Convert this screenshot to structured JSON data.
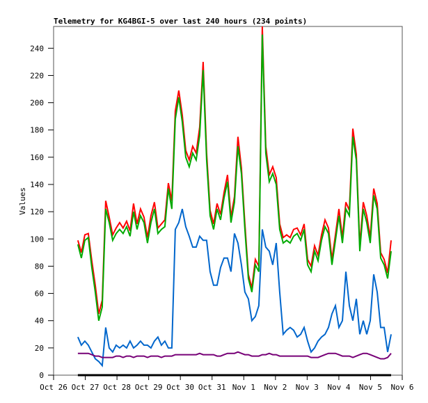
{
  "chart_data": {
    "type": "line",
    "title": "Telemetry for KG4BGI-5 over last 240 hours (234 points)",
    "xlabel": "",
    "ylabel": "Values",
    "ylim": [
      0,
      256
    ],
    "yticks": [
      "0",
      "20",
      "40",
      "60",
      "80",
      "100",
      "120",
      "140",
      "160",
      "180",
      "200",
      "220",
      "240"
    ],
    "ytick_values": [
      0,
      20,
      40,
      60,
      80,
      100,
      120,
      140,
      160,
      180,
      200,
      220,
      240
    ],
    "xticks": [
      "Oct 26",
      "Oct 27",
      "Oct 28",
      "Oct 29",
      "Oct 30",
      "Oct 31",
      "Nov 1",
      "Nov 2",
      "Nov 3",
      "Nov 4",
      "Nov 5",
      "Nov 6"
    ],
    "xlim_hours": [
      0,
      264
    ],
    "x_start_hours": 18.4,
    "x_step_hours": 2.635,
    "grid": false,
    "series": [
      {
        "name": "red",
        "color": "#ff0000",
        "values": [
          99,
          90,
          103,
          104,
          84,
          66,
          45,
          55,
          128,
          116,
          103,
          108,
          112,
          108,
          113,
          106,
          126,
          111,
          122,
          116,
          101,
          117,
          127,
          108,
          111,
          114,
          141,
          128,
          194,
          209,
          191,
          165,
          158,
          168,
          163,
          182,
          230,
          163,
          121,
          111,
          126,
          118,
          134,
          147,
          116,
          131,
          175,
          152,
          111,
          74,
          64,
          85,
          80,
          256,
          168,
          147,
          153,
          145,
          111,
          101,
          103,
          101,
          107,
          108,
          103,
          111,
          85,
          80,
          95,
          88,
          103,
          114,
          108,
          85,
          103,
          122,
          101,
          127,
          121,
          181,
          162,
          95,
          127,
          117,
          101,
          137,
          126,
          90,
          85,
          75,
          99
        ]
      },
      {
        "name": "green",
        "color": "#00aa00",
        "values": [
          96,
          86,
          99,
          101,
          79,
          61,
          40,
          50,
          122,
          112,
          99,
          104,
          107,
          104,
          109,
          102,
          120,
          107,
          117,
          112,
          97,
          112,
          122,
          104,
          107,
          109,
          137,
          122,
          188,
          204,
          186,
          160,
          153,
          163,
          158,
          176,
          224,
          158,
          117,
          107,
          122,
          114,
          130,
          142,
          112,
          127,
          168,
          148,
          107,
          71,
          61,
          81,
          76,
          250,
          163,
          142,
          148,
          140,
          107,
          97,
          99,
          97,
          102,
          104,
          99,
          107,
          81,
          76,
          91,
          84,
          99,
          109,
          104,
          81,
          99,
          117,
          97,
          122,
          117,
          175,
          158,
          91,
          122,
          112,
          97,
          132,
          122,
          86,
          81,
          71,
          91
        ]
      },
      {
        "name": "blue",
        "color": "#0066cc",
        "values": [
          28,
          22,
          25,
          22,
          17,
          12,
          10,
          7,
          35,
          20,
          17,
          22,
          20,
          22,
          20,
          25,
          20,
          22,
          25,
          22,
          22,
          20,
          25,
          28,
          22,
          25,
          20,
          20,
          107,
          112,
          122,
          109,
          102,
          94,
          94,
          102,
          99,
          99,
          76,
          66,
          66,
          79,
          86,
          86,
          76,
          104,
          97,
          81,
          61,
          56,
          40,
          43,
          51,
          107,
          94,
          91,
          81,
          97,
          61,
          30,
          33,
          35,
          33,
          28,
          30,
          35,
          25,
          17,
          20,
          25,
          28,
          30,
          35,
          45,
          51,
          35,
          40,
          76,
          51,
          40,
          56,
          30,
          40,
          30,
          40,
          74,
          61,
          35,
          35,
          17,
          30
        ]
      },
      {
        "name": "purple",
        "color": "#770077",
        "values": [
          16,
          16,
          16,
          16,
          15,
          14,
          14,
          13,
          13,
          13,
          13,
          14,
          14,
          13,
          14,
          14,
          13,
          14,
          14,
          14,
          13,
          14,
          14,
          14,
          13,
          14,
          14,
          14,
          15,
          15,
          15,
          15,
          15,
          15,
          15,
          16,
          15,
          15,
          15,
          15,
          14,
          14,
          15,
          16,
          16,
          16,
          17,
          16,
          15,
          15,
          14,
          14,
          14,
          15,
          15,
          16,
          15,
          15,
          14,
          14,
          14,
          14,
          14,
          14,
          14,
          14,
          14,
          13,
          13,
          13,
          14,
          15,
          16,
          16,
          16,
          15,
          14,
          14,
          14,
          13,
          14,
          15,
          16,
          16,
          15,
          14,
          13,
          12,
          12,
          13,
          16
        ]
      },
      {
        "name": "black",
        "color": "#000000",
        "values": [
          0,
          0,
          0,
          0,
          0,
          0,
          0,
          0,
          0,
          0,
          0,
          0,
          0,
          0,
          0,
          0,
          0,
          0,
          0,
          0,
          0,
          0,
          0,
          0,
          0,
          0,
          0,
          0,
          0,
          0,
          0,
          0,
          0,
          0,
          0,
          0,
          0,
          0,
          0,
          0,
          0,
          0,
          0,
          0,
          0,
          0,
          0,
          0,
          0,
          0,
          0,
          0,
          0,
          0,
          0,
          0,
          0,
          0,
          0,
          0,
          0,
          0,
          0,
          0,
          0,
          0,
          0,
          0,
          0,
          0,
          0,
          0,
          0,
          0,
          0,
          0,
          0,
          0,
          0,
          0,
          0,
          0,
          0,
          0,
          0,
          0,
          0,
          0,
          0,
          0,
          0
        ]
      }
    ]
  }
}
